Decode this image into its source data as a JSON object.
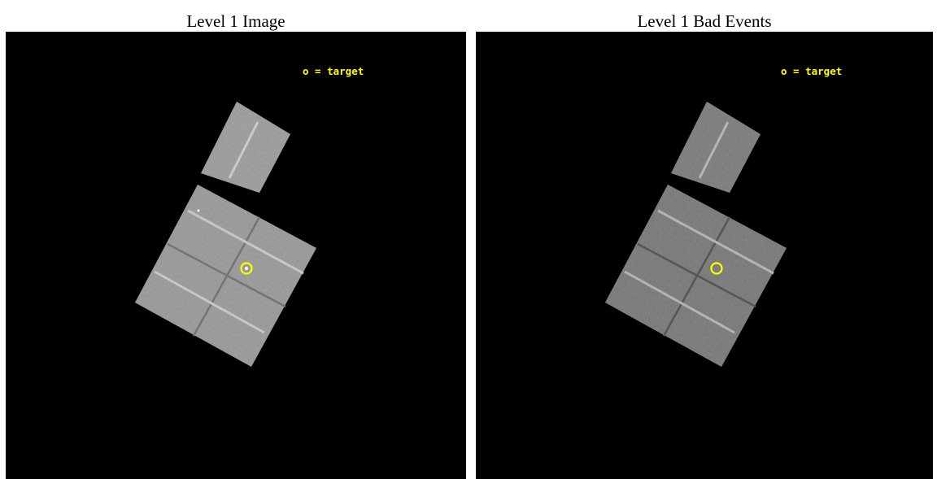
{
  "colors": {
    "background": "#000000",
    "chip": "#a8a8a8",
    "chip_dark": "#8f8f8f",
    "target_marker": "#ffff00",
    "legend_text": "#ffff00"
  },
  "panels": [
    {
      "title": "Level 1 Image",
      "legend": "o = target",
      "marker": "target-circle"
    },
    {
      "title": "Level 1 Bad Events",
      "legend": "o = target",
      "marker": "target-circle"
    }
  ]
}
